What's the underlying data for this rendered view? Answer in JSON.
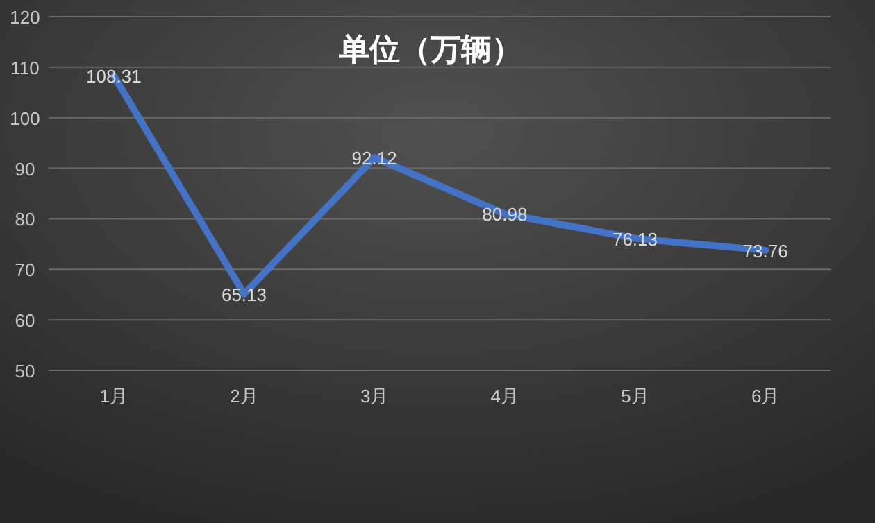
{
  "chart_data": {
    "type": "line",
    "title": "单位（万辆）",
    "categories": [
      "1月",
      "2月",
      "3月",
      "4月",
      "5月",
      "6月"
    ],
    "series": [
      {
        "color": "#4472c4",
        "values": [
          108.31,
          65.13,
          92.12,
          80.98,
          76.13,
          73.76
        ]
      }
    ],
    "ylim": [
      50,
      120
    ],
    "yticks": [
      50,
      60,
      70,
      80,
      90,
      100,
      110,
      120
    ],
    "grid": "y",
    "data_labels": true,
    "marker": "none",
    "line_style": "solid"
  }
}
